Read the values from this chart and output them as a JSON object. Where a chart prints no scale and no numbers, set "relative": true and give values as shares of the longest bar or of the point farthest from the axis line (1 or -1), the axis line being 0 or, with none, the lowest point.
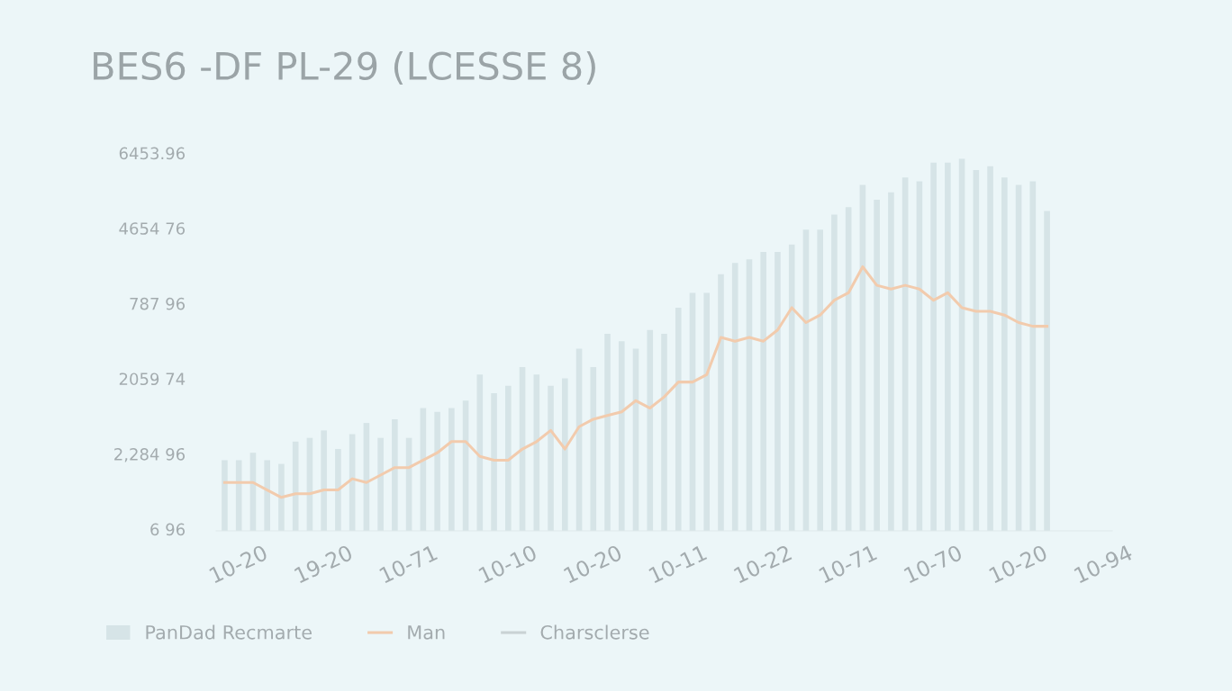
{
  "chart_data": {
    "type": "bar",
    "title": "BES6 -DF PL-29 (LCESSE 8)",
    "categories": [
      null,
      "10-20",
      null,
      null,
      null,
      null,
      null,
      "19-20",
      null,
      null,
      null,
      null,
      null,
      "10-71",
      null,
      null,
      null,
      null,
      null,
      null,
      "10-10",
      null,
      null,
      null,
      null,
      null,
      "10-20",
      null,
      null,
      null,
      null,
      null,
      "10-11",
      null,
      null,
      null,
      null,
      null,
      "10-22",
      null,
      null,
      null,
      null,
      null,
      "10-71",
      null,
      null,
      null,
      null,
      null,
      "10-70",
      null,
      null,
      null,
      null,
      null,
      "10-20",
      null,
      null,
      null,
      null,
      null,
      "10-94"
    ],
    "relative": true,
    "series": [
      {
        "name": "PanDad Recmarte",
        "color": "#d6e4e7",
        "values": [
          0.19,
          0.19,
          0.21,
          0.19,
          0.18,
          0.24,
          0.25,
          0.27,
          0.22,
          0.26,
          0.29,
          0.25,
          0.3,
          0.25,
          0.33,
          0.32,
          0.33,
          0.35,
          0.42,
          0.37,
          0.39,
          0.44,
          0.42,
          0.39,
          0.41,
          0.49,
          0.44,
          0.53,
          0.51,
          0.49,
          0.54,
          0.53,
          0.6,
          0.64,
          0.64,
          0.69,
          0.72,
          0.73,
          0.75,
          0.75,
          0.77,
          0.81,
          0.81,
          0.85,
          0.87,
          0.93,
          0.89,
          0.91,
          0.95,
          0.94,
          0.99,
          0.99,
          1.0,
          0.97,
          0.98,
          0.95,
          0.93,
          0.94,
          0.86,
          null,
          null,
          null,
          null
        ]
      },
      {
        "name": "Man",
        "type": "line",
        "color": "#f2cbad",
        "values": [
          0.13,
          0.13,
          0.13,
          0.11,
          0.09,
          0.1,
          0.1,
          0.11,
          0.11,
          0.14,
          0.13,
          0.15,
          0.17,
          0.17,
          0.19,
          0.21,
          0.24,
          0.24,
          0.2,
          0.19,
          0.19,
          0.22,
          0.24,
          0.27,
          0.22,
          0.28,
          0.3,
          0.31,
          0.32,
          0.35,
          0.33,
          0.36,
          0.4,
          0.4,
          0.42,
          0.52,
          0.51,
          0.52,
          0.51,
          0.54,
          0.6,
          0.56,
          0.58,
          0.62,
          0.64,
          0.71,
          0.66,
          0.65,
          0.66,
          0.65,
          0.62,
          0.64,
          0.6,
          0.59,
          0.59,
          0.58,
          0.56,
          0.55,
          0.55,
          null,
          null,
          null,
          null
        ]
      },
      {
        "name": "Charsclerse",
        "type": "line",
        "color": "#c9d2d4",
        "values": [
          null,
          null,
          null,
          null,
          null,
          null,
          null,
          null,
          null,
          null,
          null,
          null,
          null,
          null,
          null,
          null,
          null,
          null,
          null,
          null,
          null,
          null,
          null,
          null,
          null,
          null,
          null,
          null,
          null,
          null,
          null,
          null,
          null,
          null,
          null,
          null,
          null,
          null,
          null,
          null,
          null,
          null,
          null,
          null,
          null,
          null,
          null,
          null,
          null,
          null,
          null,
          null,
          null,
          null,
          null,
          null,
          null,
          null,
          null,
          null,
          null,
          null,
          null
        ]
      }
    ],
    "annotations": [
      "6 96",
      "2,284 96",
      "2059 74",
      "787 96",
      "4654 76",
      "6453.96"
    ],
    "legend": "bottom left"
  }
}
